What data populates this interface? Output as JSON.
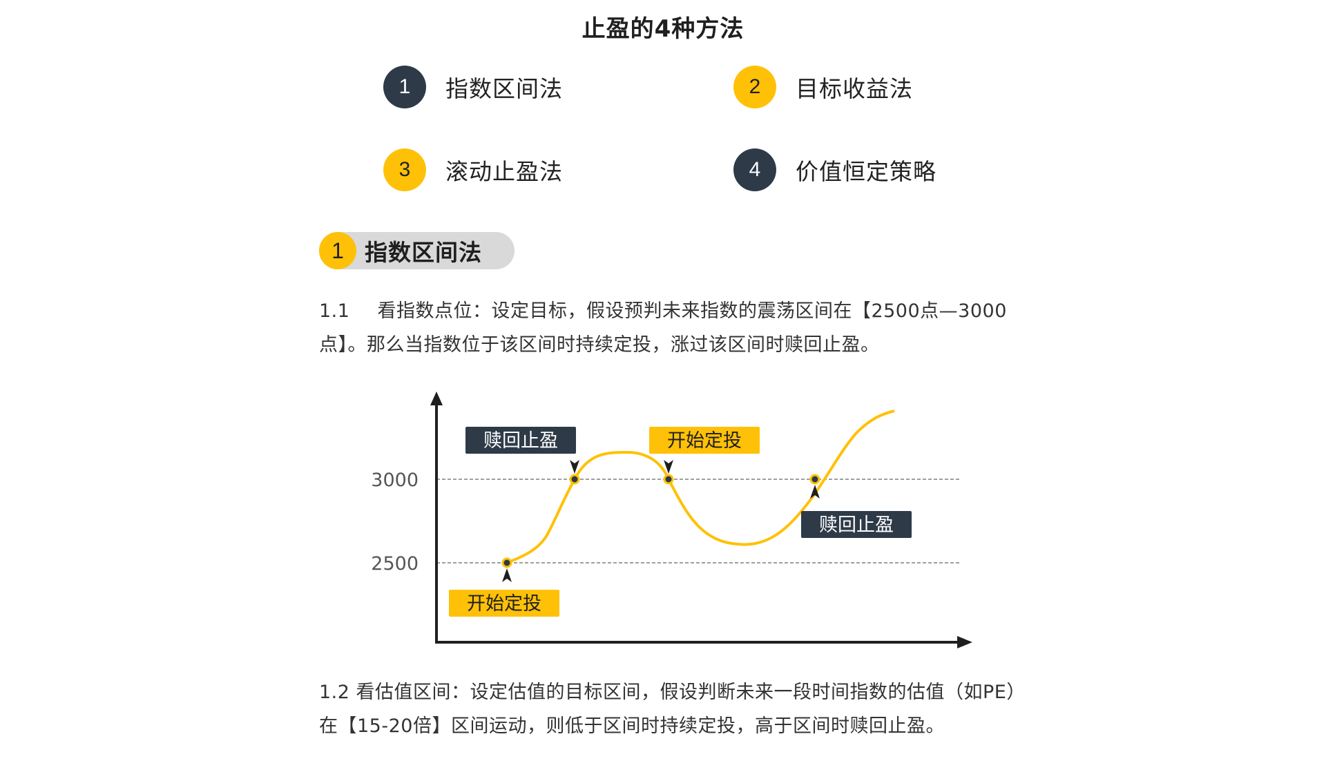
{
  "title": "止盈的4种方法",
  "methods": [
    {
      "num": "1",
      "label": "指数区间法",
      "color": "#2e3a48"
    },
    {
      "num": "2",
      "label": "目标收益法",
      "color": "#ffc107"
    },
    {
      "num": "3",
      "label": "滚动止盈法",
      "color": "#ffc107"
    },
    {
      "num": "4",
      "label": "价值恒定策略",
      "color": "#2e3a48"
    }
  ],
  "section": {
    "num": "1",
    "label": "指数区间法"
  },
  "paragraph1": {
    "num": "1.1",
    "text": "看指数点位：设定目标，假设预判未来指数的震荡区间在【2500点—3000点】。那么当指数位于该区间时持续定投，涨过该区间时赎回止盈。"
  },
  "chart": {
    "y_levels": [
      {
        "label": "3000",
        "value": 3000
      },
      {
        "label": "2500",
        "value": 2500
      }
    ],
    "callouts": [
      {
        "label": "赎回止盈",
        "style": "dark"
      },
      {
        "label": "开始定投",
        "style": "yellow"
      },
      {
        "label": "赎回止盈",
        "style": "dark"
      },
      {
        "label": "开始定投",
        "style": "yellow"
      }
    ],
    "colors": {
      "curve": "#ffc107",
      "axis": "#1f1f1f",
      "dark_box": "#2e3a48",
      "yellow_box": "#ffc107",
      "guide": "#9e9e9e"
    }
  },
  "paragraph2": {
    "text": "1.2 看估值区间：设定估值的目标区间，假设判断未来一段时间指数的估值（如PE）在【15-20倍】区间运动，则低于区间时持续定投，高于区间时赎回止盈。"
  }
}
